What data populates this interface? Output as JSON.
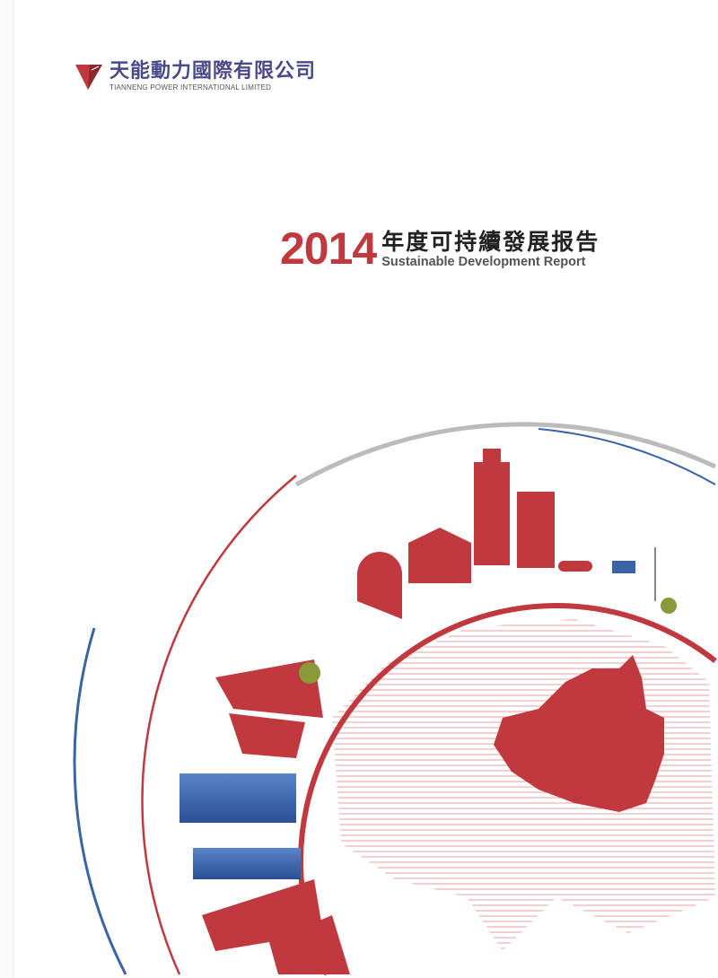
{
  "company": {
    "name_cn": "天能動力國際有限公司",
    "name_en": "TIANNENG POWER INTERNATIONAL LIMITED"
  },
  "report": {
    "year": "2014",
    "title_cn": "年度可持續發展报告",
    "title_en": "Sustainable Development Report"
  },
  "colors": {
    "brand_red": "#c0393e",
    "blue": "#3a63a8",
    "grey": "#b5b5b5"
  }
}
